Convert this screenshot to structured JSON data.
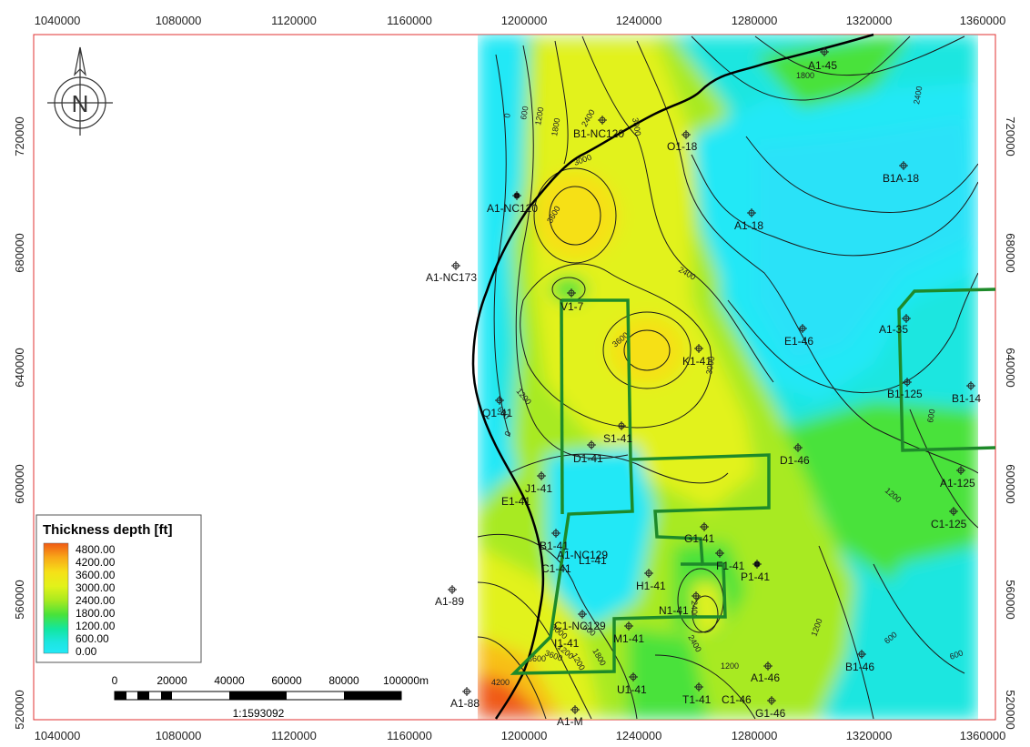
{
  "top_axis": [
    "1040000",
    "1080000",
    "1120000",
    "1160000",
    "1200000",
    "1240000",
    "1280000",
    "1320000",
    "1360000"
  ],
  "bottom_axis": [
    "1040000",
    "1080000",
    "1120000",
    "1160000",
    "1200000",
    "1240000",
    "1280000",
    "1320000",
    "1360000"
  ],
  "left_axis": [
    "720000",
    "680000",
    "640000",
    "600000",
    "560000",
    "520000"
  ],
  "right_axis": [
    "720000",
    "680000",
    "640000",
    "600000",
    "560000",
    "520000"
  ],
  "north_arrow_letter": "N",
  "legend": {
    "title": "Thickness depth [ft]",
    "values": [
      "4800.00",
      "4200.00",
      "3600.00",
      "3000.00",
      "2400.00",
      "1800.00",
      "1200.00",
      "600.00",
      "0.00"
    ],
    "colors": [
      "#f05a14",
      "#f8a818",
      "#f6e018",
      "#e2f21a",
      "#a8ea20",
      "#48e23a",
      "#12e6a0",
      "#1ce6e0",
      "#22e8f6"
    ]
  },
  "scale": {
    "ticks": [
      "0",
      "20000",
      "40000",
      "60000",
      "80000",
      "100000m"
    ],
    "ratio": "1:1593092"
  },
  "contour_labels": [
    "0",
    "600",
    "1200",
    "1800",
    "2400",
    "3000",
    "3600",
    "2400",
    "3000",
    "3600",
    "3600",
    "3000",
    "2400",
    "1800",
    "1200",
    "600",
    "1200",
    "600",
    "0",
    "1200",
    "600",
    "1200",
    "600",
    "1200",
    "600",
    "3600",
    "4200",
    "2400",
    "1800",
    "1200",
    "2400",
    "3000"
  ],
  "wells": [
    {
      "label": "A1-45"
    },
    {
      "label": "B1-NC120"
    },
    {
      "label": "O1-18"
    },
    {
      "label": "B1A-18"
    },
    {
      "label": "A1-NC120"
    },
    {
      "label": "A1-18"
    },
    {
      "label": "A1-NC173"
    },
    {
      "label": "V1-7"
    },
    {
      "label": "A1-35"
    },
    {
      "label": "E1-46"
    },
    {
      "label": "K1-41"
    },
    {
      "label": "B1-125"
    },
    {
      "label": "B1-14"
    },
    {
      "label": "Q1-41"
    },
    {
      "label": "S1-41"
    },
    {
      "label": "D1-41"
    },
    {
      "label": "D1-46"
    },
    {
      "label": "J1-41"
    },
    {
      "label": "E1-41"
    },
    {
      "label": "A1-125"
    },
    {
      "label": "C1-125"
    },
    {
      "label": "G1-41"
    },
    {
      "label": "B1-41"
    },
    {
      "label": "A1-NC129"
    },
    {
      "label": "C1-41"
    },
    {
      "label": "L1-41"
    },
    {
      "label": "H1-41"
    },
    {
      "label": "P1-41"
    },
    {
      "label": "F1-41"
    },
    {
      "label": "N1-41"
    },
    {
      "label": "A1-89"
    },
    {
      "label": "C1-NC129"
    },
    {
      "label": "I1-41"
    },
    {
      "label": "M1-41"
    },
    {
      "label": "B1-46"
    },
    {
      "label": "A1-46"
    },
    {
      "label": "U1-41"
    },
    {
      "label": "T1-41"
    },
    {
      "label": "C1-46"
    },
    {
      "label": "G1-46"
    },
    {
      "label": "A1-88"
    },
    {
      "label": "A1-M"
    }
  ]
}
